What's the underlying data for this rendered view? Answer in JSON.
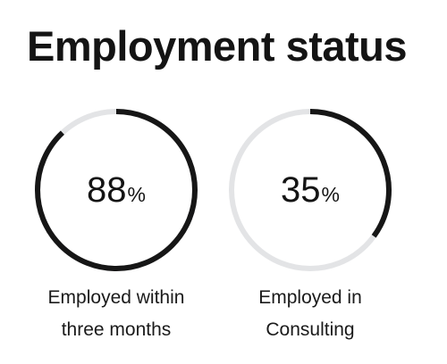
{
  "title": "Employment status",
  "stats": [
    {
      "value": "88",
      "unit": "%",
      "percent": 88,
      "caption_line1": "Employed within",
      "caption_line2": "three months"
    },
    {
      "value": "35",
      "unit": "%",
      "percent": 35,
      "caption_line1": "Employed in",
      "caption_line2": "Consulting"
    }
  ],
  "colors": {
    "ring_fill": "#161616",
    "ring_track": "#e3e4e6",
    "text": "#141414",
    "background": "#ffffff"
  }
}
